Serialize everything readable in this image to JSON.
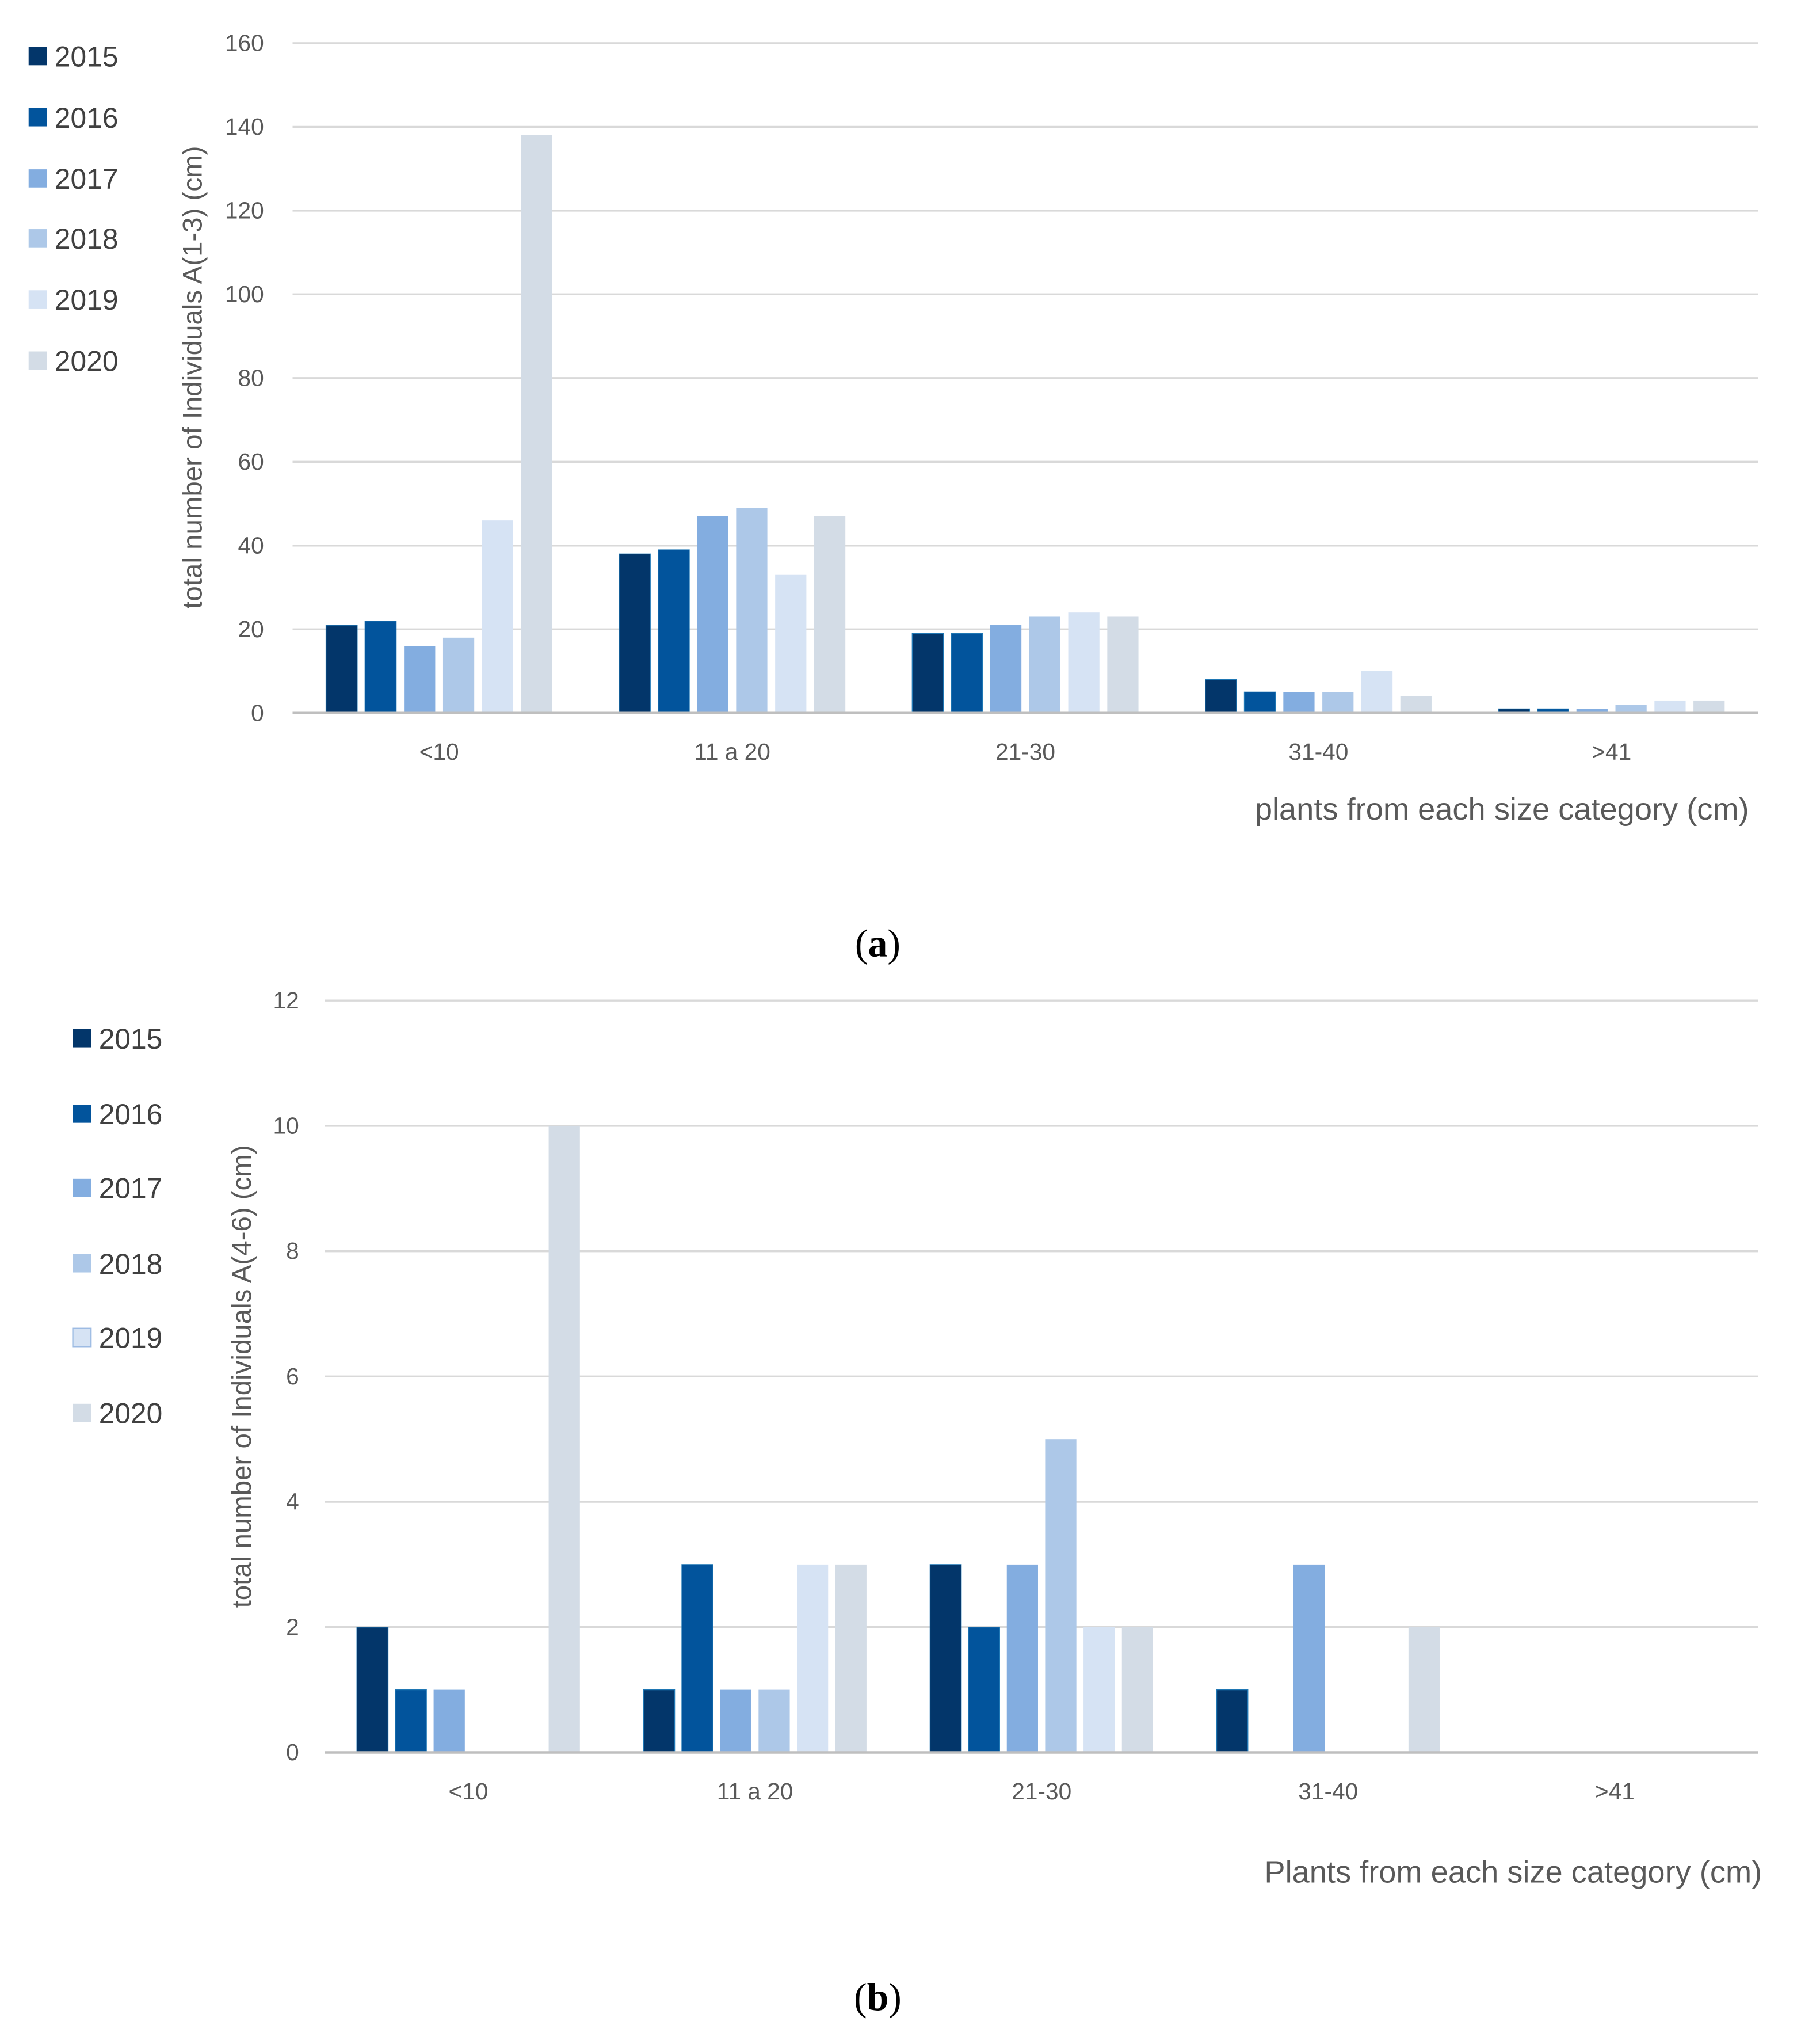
{
  "chart_data": [
    {
      "type": "bar",
      "caption": "(a)",
      "caption_letter": "a",
      "title": "",
      "xlabel": "plants from each size category (cm)",
      "ylabel": "total number of Individuals A(1-3) (cm)",
      "ylim": [
        0,
        160
      ],
      "yticks": [
        "0",
        "20",
        "40",
        "60",
        "80",
        "100",
        "120",
        "140",
        "160"
      ],
      "grid": true,
      "legend_placement": "left",
      "categories": [
        "<10",
        "11 a 20",
        "21-30",
        "31-40",
        ">41"
      ],
      "series": [
        {
          "name": "2015",
          "color": "#03366a",
          "values": [
            21,
            38,
            19,
            8,
            1
          ]
        },
        {
          "name": "2016",
          "color": "#02549c",
          "values": [
            22,
            39,
            19,
            5,
            1
          ]
        },
        {
          "name": "2017",
          "color": "#83ade0",
          "values": [
            16,
            47,
            21,
            5,
            1
          ]
        },
        {
          "name": "2018",
          "color": "#adc8e8",
          "values": [
            18,
            49,
            23,
            5,
            2
          ]
        },
        {
          "name": "2019",
          "color": "#d6e3f4",
          "values": [
            46,
            33,
            24,
            10,
            3
          ]
        },
        {
          "name": "2020",
          "color": "#d3dce6",
          "values": [
            138,
            47,
            23,
            4,
            3
          ]
        }
      ]
    },
    {
      "type": "bar",
      "caption": "(b)",
      "caption_letter": "b",
      "title": "",
      "xlabel": "Plants from  each size category (cm)",
      "ylabel": "total number of Individuals A(4-6) (cm)",
      "ylim": [
        0,
        12
      ],
      "yticks": [
        "0",
        "2",
        "4",
        "6",
        "8",
        "10",
        "12"
      ],
      "grid": true,
      "legend_placement": "left",
      "categories": [
        "<10",
        "11 a 20",
        "21-30",
        "31-40",
        ">41"
      ],
      "series": [
        {
          "name": "2015",
          "color": "#03366a",
          "values": [
            2,
            1,
            3,
            1,
            0
          ]
        },
        {
          "name": "2016",
          "color": "#02549c",
          "values": [
            1,
            3,
            2,
            0,
            0
          ]
        },
        {
          "name": "2017",
          "color": "#83ade0",
          "values": [
            1,
            1,
            3,
            3,
            0
          ]
        },
        {
          "name": "2018",
          "color": "#adc8e8",
          "values": [
            0,
            1,
            5,
            0,
            0
          ]
        },
        {
          "name": "2019",
          "color": "#d6e3f4",
          "values": [
            0,
            3,
            2,
            0,
            0
          ]
        },
        {
          "name": "2020",
          "color": "#d3dce6",
          "values": [
            10,
            3,
            2,
            2,
            0
          ]
        }
      ]
    }
  ]
}
